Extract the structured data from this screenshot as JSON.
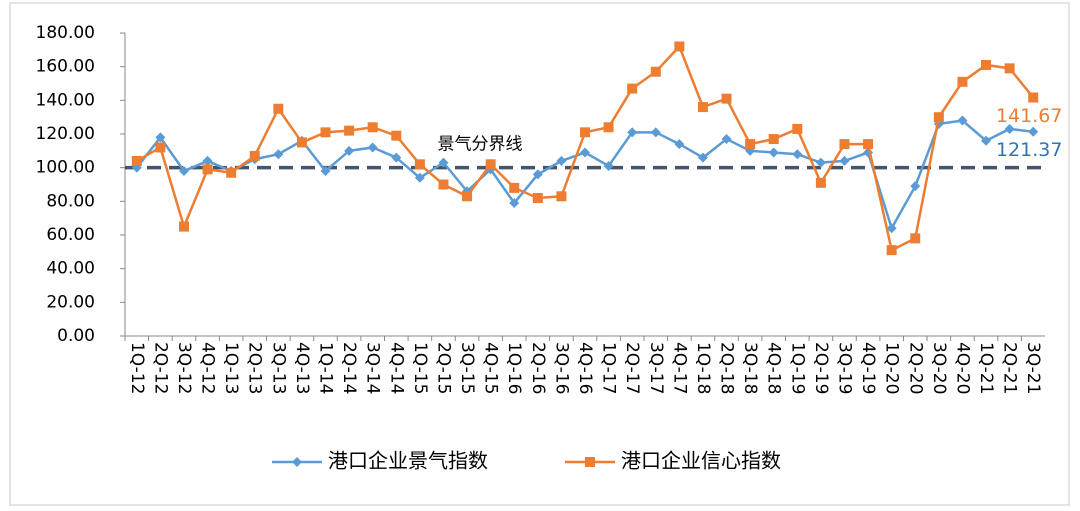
{
  "chart_data": {
    "type": "line",
    "categories": [
      "1Q-12",
      "2Q-12",
      "3Q-12",
      "4Q-12",
      "1Q-13",
      "2Q-13",
      "3Q-13",
      "4Q-13",
      "1Q-14",
      "2Q-14",
      "3Q-14",
      "4Q-14",
      "1Q-15",
      "2Q-15",
      "3Q-15",
      "4Q-15",
      "1Q-16",
      "2Q-16",
      "3Q-16",
      "4Q-16",
      "1Q-17",
      "2Q-17",
      "3Q-17",
      "4Q-17",
      "1Q-18",
      "2Q-18",
      "3Q-18",
      "4Q-18",
      "1Q-19",
      "2Q-19",
      "3Q-19",
      "4Q-19",
      "1Q-20",
      "2Q-20",
      "3Q-20",
      "4Q-20",
      "1Q-21",
      "2Q-21",
      "3Q-21"
    ],
    "series": [
      {
        "name": "港口企业景气指数",
        "color": "#5b9bd5",
        "marker": "diamond",
        "label_color": "#2e75b6",
        "values": [
          100,
          118,
          98,
          104,
          98,
          105,
          108,
          116,
          98,
          110,
          112,
          106,
          94,
          103,
          86,
          99,
          79,
          96,
          104,
          109,
          101,
          121,
          121,
          114,
          106,
          117,
          110,
          109,
          108,
          103,
          104,
          109,
          64,
          89,
          126,
          128,
          116,
          123,
          121.37
        ]
      },
      {
        "name": "港口企业信心指数",
        "color": "#ed7d31",
        "marker": "square",
        "label_color": "#ed7d31",
        "values": [
          104,
          112,
          65,
          99,
          97,
          107,
          135,
          115,
          121,
          122,
          124,
          119,
          102,
          90,
          83,
          102,
          88,
          82,
          83,
          121,
          124,
          147,
          157,
          172,
          136,
          141,
          114,
          117,
          123,
          91,
          114,
          114,
          51,
          58,
          130,
          151,
          161,
          159,
          141.67
        ]
      }
    ],
    "threshold": {
      "value": 100,
      "label": "景气分界线",
      "color": "#44546a"
    },
    "ylim": [
      0,
      180
    ],
    "yticks": [
      {
        "value": 0,
        "label": "0.00"
      },
      {
        "value": 20,
        "label": "20.00"
      },
      {
        "value": 40,
        "label": "40.00"
      },
      {
        "value": 60,
        "label": "60.00"
      },
      {
        "value": 80,
        "label": "80.00"
      },
      {
        "value": 100,
        "label": "100.00"
      },
      {
        "value": 120,
        "label": "120.00"
      },
      {
        "value": 140,
        "label": "140.00"
      },
      {
        "value": 160,
        "label": "160.00"
      },
      {
        "value": 180,
        "label": "180.00"
      }
    ],
    "grid": false,
    "legend": "bottom"
  }
}
